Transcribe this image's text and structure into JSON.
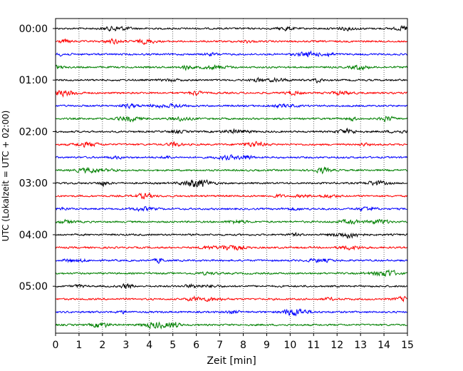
{
  "chart_data": {
    "type": "line",
    "title": "",
    "xlabel": "Zeit  [min]",
    "ylabel": "UTC (Lokalzeit = UTC + 02:00)",
    "xlim": [
      0,
      15
    ],
    "x_ticks": [
      "0",
      "1",
      "2",
      "3",
      "4",
      "5",
      "6",
      "7",
      "8",
      "9",
      "10",
      "11",
      "12",
      "13",
      "14",
      "15"
    ],
    "y_tick_labels": [
      "00:00",
      "01:00",
      "02:00",
      "03:00",
      "04:00",
      "05:00"
    ],
    "row_minutes": 15,
    "row_count": 24,
    "row_colors": [
      "#000000",
      "#ff0000",
      "#0000ff",
      "#008000"
    ],
    "grid_vertical": "dotted",
    "legend": "none"
  }
}
